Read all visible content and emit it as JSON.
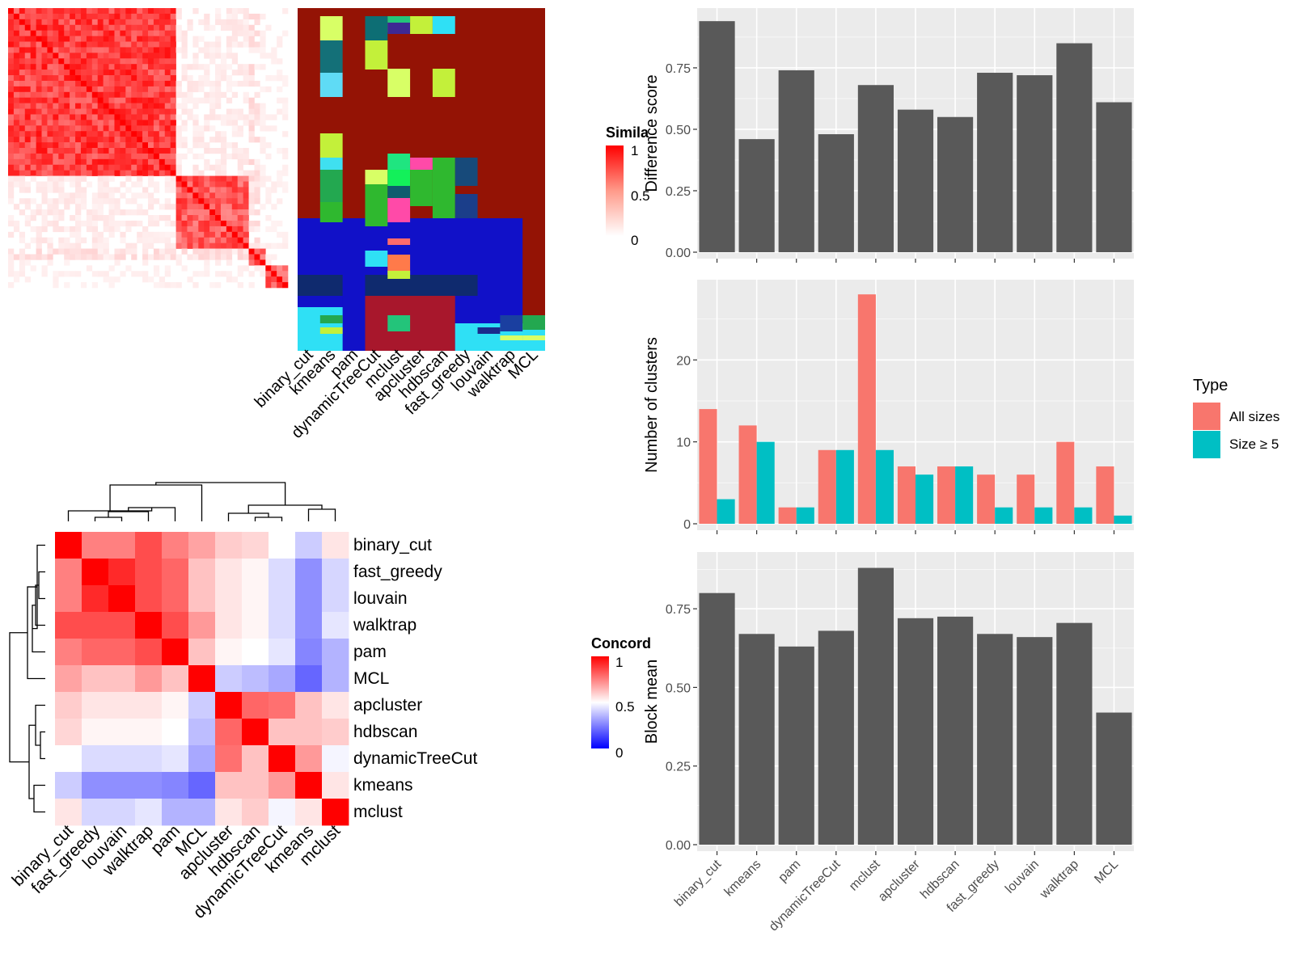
{
  "chart_data": [
    {
      "type": "heatmap",
      "panel": "similarity-matrix",
      "legend_title": "Simila",
      "legend_ticks": [
        "1",
        "0.5",
        "0"
      ],
      "colors": {
        "high": "#ff0000",
        "low": "#ffffff"
      },
      "note": "consensus similarity heatmap with per-method cluster membership annotation"
    },
    {
      "type": "heatmap",
      "panel": "method-membership",
      "categories": [
        "binary_cut",
        "kmeans",
        "pam",
        "dynamicTreeCut",
        "mclust",
        "apcluster",
        "hdbscan",
        "fast_greedy",
        "louvain",
        "walktrap",
        "MCL"
      ]
    },
    {
      "type": "heatmap",
      "panel": "concordance",
      "legend_title": "Concord",
      "legend_ticks": [
        "1",
        "0.5",
        "0"
      ],
      "colors": {
        "high": "#ff0000",
        "mid": "#ffffff",
        "low": "#0000ff"
      },
      "rows": [
        "binary_cut",
        "fast_greedy",
        "louvain",
        "walktrap",
        "pam",
        "MCL",
        "apcluster",
        "hdbscan",
        "dynamicTreeCut",
        "kmeans",
        "mclust"
      ],
      "cols": [
        "binary_cut",
        "fast_greedy",
        "louvain",
        "walktrap",
        "pam",
        "MCL",
        "apcluster",
        "hdbscan",
        "dynamicTreeCut",
        "kmeans",
        "mclust"
      ],
      "values": [
        [
          1.0,
          0.75,
          0.75,
          0.85,
          0.75,
          0.68,
          0.6,
          0.58,
          0.5,
          0.4,
          0.55
        ],
        [
          0.75,
          1.0,
          0.92,
          0.85,
          0.8,
          0.62,
          0.55,
          0.52,
          0.43,
          0.28,
          0.42
        ],
        [
          0.75,
          0.92,
          1.0,
          0.85,
          0.8,
          0.62,
          0.55,
          0.52,
          0.43,
          0.28,
          0.42
        ],
        [
          0.85,
          0.85,
          0.85,
          1.0,
          0.85,
          0.7,
          0.55,
          0.52,
          0.43,
          0.28,
          0.45
        ],
        [
          0.75,
          0.8,
          0.8,
          0.85,
          1.0,
          0.62,
          0.52,
          0.5,
          0.45,
          0.26,
          0.35
        ],
        [
          0.68,
          0.62,
          0.62,
          0.7,
          0.62,
          1.0,
          0.4,
          0.37,
          0.33,
          0.2,
          0.35
        ],
        [
          0.6,
          0.55,
          0.55,
          0.55,
          0.52,
          0.4,
          1.0,
          0.8,
          0.78,
          0.62,
          0.55
        ],
        [
          0.58,
          0.52,
          0.52,
          0.52,
          0.5,
          0.37,
          0.8,
          1.0,
          0.62,
          0.62,
          0.6
        ],
        [
          0.5,
          0.43,
          0.43,
          0.43,
          0.45,
          0.33,
          0.78,
          0.62,
          1.0,
          0.7,
          0.48
        ],
        [
          0.4,
          0.28,
          0.28,
          0.28,
          0.26,
          0.2,
          0.62,
          0.62,
          0.7,
          1.0,
          0.55
        ],
        [
          0.55,
          0.42,
          0.42,
          0.45,
          0.35,
          0.35,
          0.55,
          0.6,
          0.48,
          0.55,
          1.0
        ]
      ]
    },
    {
      "type": "bar",
      "panel": "difference-score",
      "categories": [
        "binary_cut",
        "kmeans",
        "pam",
        "dynamicTreeCut",
        "mclust",
        "apcluster",
        "hdbscan",
        "fast_greedy",
        "louvain",
        "walktrap",
        "MCL"
      ],
      "values": [
        0.94,
        0.46,
        0.74,
        0.48,
        0.68,
        0.58,
        0.55,
        0.73,
        0.72,
        0.85,
        0.61
      ],
      "ylabel": "Difference score",
      "ylim": [
        0,
        0.98
      ],
      "yticks": [
        "0.00",
        "0.25",
        "0.50",
        "0.75"
      ],
      "bar_color": "#595959"
    },
    {
      "type": "bar",
      "panel": "number-of-clusters",
      "categories": [
        "binary_cut",
        "kmeans",
        "pam",
        "dynamicTreeCut",
        "mclust",
        "apcluster",
        "hdbscan",
        "fast_greedy",
        "louvain",
        "walktrap",
        "MCL"
      ],
      "series": [
        {
          "name": "All sizes",
          "color": "#f8766d",
          "values": [
            14,
            12,
            2,
            9,
            28,
            7,
            7,
            6,
            6,
            10,
            7
          ]
        },
        {
          "name": "Size ≥ 5",
          "color": "#00bfc4",
          "values": [
            3,
            10,
            2,
            9,
            9,
            6,
            7,
            2,
            2,
            2,
            1
          ]
        }
      ],
      "ylabel": "Number of clusters",
      "ylim": [
        0,
        29.4
      ],
      "yticks": [
        "0",
        "10",
        "20"
      ],
      "legend_title": "Type",
      "legend_position": "right"
    },
    {
      "type": "bar",
      "panel": "block-mean",
      "categories": [
        "binary_cut",
        "kmeans",
        "pam",
        "dynamicTreeCut",
        "mclust",
        "apcluster",
        "hdbscan",
        "fast_greedy",
        "louvain",
        "walktrap",
        "MCL"
      ],
      "values": [
        0.8,
        0.67,
        0.63,
        0.68,
        0.88,
        0.72,
        0.725,
        0.67,
        0.66,
        0.705,
        0.42
      ],
      "ylabel": "Block mean",
      "ylim": [
        0,
        0.92
      ],
      "yticks": [
        "0.00",
        "0.25",
        "0.50",
        "0.75"
      ],
      "bar_color": "#595959"
    }
  ]
}
